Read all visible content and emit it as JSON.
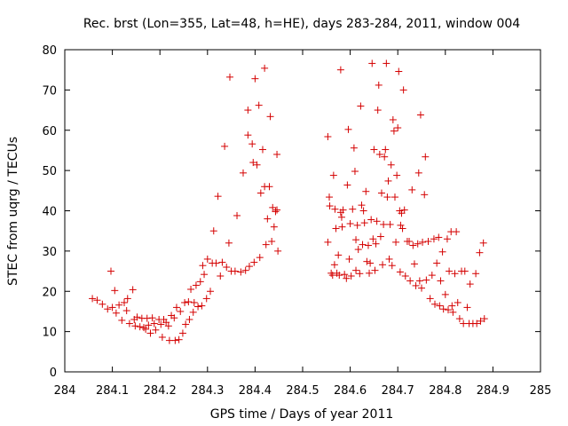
{
  "chart_data": {
    "type": "scatter",
    "title": "Rec. brst (Lon=355, Lat=48, h=HE), days 283-284, 2011, window 004",
    "xlabel": "GPS time / Days of year 2011",
    "ylabel": "STEC from uqrg / TECUs",
    "xlim": [
      284,
      285
    ],
    "ylim": [
      0,
      80
    ],
    "x_ticks": [
      "284",
      "284.1",
      "284.2",
      "284.3",
      "284.4",
      "284.5",
      "284.6",
      "284.7",
      "284.8",
      "284.9",
      "285"
    ],
    "y_ticks": [
      "0",
      "10",
      "20",
      "30",
      "40",
      "50",
      "60",
      "70",
      "80"
    ],
    "grid": false,
    "marker": "+",
    "color": "#d40000",
    "series": [
      {
        "name": "STEC",
        "points": [
          [
            284.058,
            18.2
          ],
          [
            284.068,
            17.8
          ],
          [
            284.079,
            16.8
          ],
          [
            284.09,
            15.6
          ],
          [
            284.097,
            25.0
          ],
          [
            284.1,
            16.0
          ],
          [
            284.105,
            20.2
          ],
          [
            284.108,
            14.6
          ],
          [
            284.114,
            16.6
          ],
          [
            284.12,
            12.8
          ],
          [
            284.125,
            17.2
          ],
          [
            284.13,
            15.2
          ],
          [
            284.132,
            18.2
          ],
          [
            284.136,
            12.0
          ],
          [
            284.143,
            20.4
          ],
          [
            284.146,
            13.0
          ],
          [
            284.148,
            11.4
          ],
          [
            284.152,
            13.6
          ],
          [
            284.158,
            11.2
          ],
          [
            284.162,
            13.3
          ],
          [
            284.166,
            11.0
          ],
          [
            284.17,
            10.6
          ],
          [
            284.173,
            13.3
          ],
          [
            284.176,
            11.6
          ],
          [
            284.18,
            9.6
          ],
          [
            284.184,
            13.4
          ],
          [
            284.188,
            12.0
          ],
          [
            284.191,
            10.4
          ],
          [
            284.198,
            13.0
          ],
          [
            284.202,
            11.8
          ],
          [
            284.205,
            8.6
          ],
          [
            284.208,
            13.0
          ],
          [
            284.213,
            12.3
          ],
          [
            284.218,
            11.4
          ],
          [
            284.22,
            7.8
          ],
          [
            284.224,
            14.0
          ],
          [
            284.23,
            13.4
          ],
          [
            284.232,
            7.8
          ],
          [
            284.235,
            16.0
          ],
          [
            284.24,
            8.0
          ],
          [
            284.243,
            15.0
          ],
          [
            284.248,
            9.6
          ],
          [
            284.252,
            17.2
          ],
          [
            284.254,
            11.8
          ],
          [
            284.26,
            17.4
          ],
          [
            284.262,
            13.0
          ],
          [
            284.265,
            20.5
          ],
          [
            284.27,
            14.8
          ],
          [
            284.272,
            17.2
          ],
          [
            284.276,
            21.5
          ],
          [
            284.28,
            16.2
          ],
          [
            284.285,
            22.4
          ],
          [
            284.288,
            16.4
          ],
          [
            284.29,
            26.4
          ],
          [
            284.293,
            24.2
          ],
          [
            284.298,
            18.2
          ],
          [
            284.3,
            28.0
          ],
          [
            284.306,
            20.0
          ],
          [
            284.31,
            27.0
          ],
          [
            284.313,
            35.0
          ],
          [
            284.318,
            27.0
          ],
          [
            284.322,
            43.6
          ],
          [
            284.327,
            23.8
          ],
          [
            284.331,
            27.2
          ],
          [
            284.336,
            56.0
          ],
          [
            284.34,
            26.0
          ],
          [
            284.345,
            32.0
          ],
          [
            284.347,
            73.2
          ],
          [
            284.35,
            25.0
          ],
          [
            284.358,
            25.0
          ],
          [
            284.362,
            38.8
          ],
          [
            284.37,
            24.8
          ],
          [
            284.375,
            49.4
          ],
          [
            284.38,
            25.2
          ],
          [
            284.385,
            58.8
          ],
          [
            284.385,
            65.0
          ],
          [
            284.388,
            26.2
          ],
          [
            284.394,
            56.6
          ],
          [
            284.396,
            52.0
          ],
          [
            284.398,
            27.2
          ],
          [
            284.4,
            72.8
          ],
          [
            284.404,
            51.4
          ],
          [
            284.408,
            66.2
          ],
          [
            284.41,
            28.4
          ],
          [
            284.412,
            44.4
          ],
          [
            284.416,
            55.2
          ],
          [
            284.42,
            75.4
          ],
          [
            284.42,
            46.0
          ],
          [
            284.423,
            31.6
          ],
          [
            284.426,
            38.0
          ],
          [
            284.43,
            46.0
          ],
          [
            284.432,
            63.4
          ],
          [
            284.435,
            32.4
          ],
          [
            284.437,
            40.8
          ],
          [
            284.44,
            36.0
          ],
          [
            284.443,
            39.8
          ],
          [
            284.446,
            54.0
          ],
          [
            284.446,
            40.2
          ],
          [
            284.448,
            30.0
          ],
          [
            284.553,
            58.4
          ],
          [
            284.553,
            32.2
          ],
          [
            284.556,
            43.4
          ],
          [
            284.557,
            41.2
          ],
          [
            284.56,
            24.5
          ],
          [
            284.563,
            24.0
          ],
          [
            284.565,
            48.8
          ],
          [
            284.567,
            26.6
          ],
          [
            284.568,
            40.4
          ],
          [
            284.57,
            35.6
          ],
          [
            284.572,
            24.5
          ],
          [
            284.575,
            29.0
          ],
          [
            284.577,
            24.0
          ],
          [
            284.58,
            39.6
          ],
          [
            284.58,
            75.0
          ],
          [
            284.582,
            38.4
          ],
          [
            284.583,
            36.0
          ],
          [
            284.585,
            40.2
          ],
          [
            284.588,
            24.2
          ],
          [
            284.592,
            23.2
          ],
          [
            284.594,
            46.4
          ],
          [
            284.596,
            60.2
          ],
          [
            284.598,
            28.0
          ],
          [
            284.6,
            36.8
          ],
          [
            284.602,
            23.8
          ],
          [
            284.605,
            40.4
          ],
          [
            284.608,
            55.6
          ],
          [
            284.61,
            49.8
          ],
          [
            284.612,
            32.8
          ],
          [
            284.612,
            25.2
          ],
          [
            284.615,
            36.4
          ],
          [
            284.617,
            30.4
          ],
          [
            284.62,
            24.4
          ],
          [
            284.622,
            66.0
          ],
          [
            284.624,
            41.4
          ],
          [
            284.626,
            31.6
          ],
          [
            284.628,
            40.0
          ],
          [
            284.63,
            37.0
          ],
          [
            284.633,
            44.8
          ],
          [
            284.635,
            27.4
          ],
          [
            284.638,
            31.4
          ],
          [
            284.64,
            24.5
          ],
          [
            284.642,
            27.0
          ],
          [
            284.644,
            37.8
          ],
          [
            284.646,
            76.6
          ],
          [
            284.648,
            33.0
          ],
          [
            284.65,
            55.2
          ],
          [
            284.652,
            25.2
          ],
          [
            284.654,
            31.8
          ],
          [
            284.656,
            37.4
          ],
          [
            284.658,
            65.0
          ],
          [
            284.66,
            71.2
          ],
          [
            284.662,
            54.0
          ],
          [
            284.664,
            33.6
          ],
          [
            284.666,
            44.4
          ],
          [
            284.668,
            26.6
          ],
          [
            284.67,
            36.6
          ],
          [
            284.672,
            53.4
          ],
          [
            284.674,
            55.2
          ],
          [
            284.676,
            76.6
          ],
          [
            284.678,
            43.4
          ],
          [
            284.68,
            47.4
          ],
          [
            284.682,
            28.0
          ],
          [
            284.684,
            36.6
          ],
          [
            284.686,
            51.4
          ],
          [
            284.688,
            26.4
          ],
          [
            284.69,
            62.6
          ],
          [
            284.692,
            59.8
          ],
          [
            284.694,
            43.4
          ],
          [
            284.696,
            32.2
          ],
          [
            284.698,
            48.8
          ],
          [
            284.7,
            60.6
          ],
          [
            284.702,
            74.6
          ],
          [
            284.704,
            40.0
          ],
          [
            284.705,
            24.8
          ],
          [
            284.706,
            36.4
          ],
          [
            284.708,
            39.4
          ],
          [
            284.71,
            35.6
          ],
          [
            284.712,
            70.0
          ],
          [
            284.714,
            40.2
          ],
          [
            284.716,
            23.8
          ],
          [
            284.72,
            32.4
          ],
          [
            284.724,
            32.4
          ],
          [
            284.726,
            22.6
          ],
          [
            284.73,
            45.2
          ],
          [
            284.732,
            31.4
          ],
          [
            284.735,
            26.8
          ],
          [
            284.738,
            21.4
          ],
          [
            284.742,
            31.8
          ],
          [
            284.744,
            49.4
          ],
          [
            284.746,
            22.6
          ],
          [
            284.748,
            63.8
          ],
          [
            284.75,
            20.8
          ],
          [
            284.752,
            32.2
          ],
          [
            284.756,
            44.0
          ],
          [
            284.758,
            53.4
          ],
          [
            284.76,
            22.8
          ],
          [
            284.764,
            32.4
          ],
          [
            284.768,
            18.2
          ],
          [
            284.772,
            24.0
          ],
          [
            284.776,
            33.0
          ],
          [
            284.778,
            16.8
          ],
          [
            284.782,
            27.0
          ],
          [
            284.786,
            33.4
          ],
          [
            284.788,
            16.4
          ],
          [
            284.79,
            22.6
          ],
          [
            284.794,
            29.8
          ],
          [
            284.796,
            15.6
          ],
          [
            284.8,
            19.2
          ],
          [
            284.804,
            33.0
          ],
          [
            284.806,
            15.4
          ],
          [
            284.808,
            25.0
          ],
          [
            284.812,
            34.8
          ],
          [
            284.814,
            16.4
          ],
          [
            284.816,
            14.8
          ],
          [
            284.82,
            24.4
          ],
          [
            284.823,
            34.8
          ],
          [
            284.826,
            17.2
          ],
          [
            284.83,
            13.2
          ],
          [
            284.834,
            25.0
          ],
          [
            284.838,
            12.0
          ],
          [
            284.841,
            25.0
          ],
          [
            284.846,
            16.0
          ],
          [
            284.85,
            12.0
          ],
          [
            284.852,
            21.8
          ],
          [
            284.858,
            12.0
          ],
          [
            284.864,
            24.4
          ],
          [
            284.866,
            12.0
          ],
          [
            284.872,
            29.6
          ],
          [
            284.874,
            12.6
          ],
          [
            284.88,
            32.0
          ],
          [
            284.882,
            13.2
          ]
        ]
      }
    ]
  }
}
